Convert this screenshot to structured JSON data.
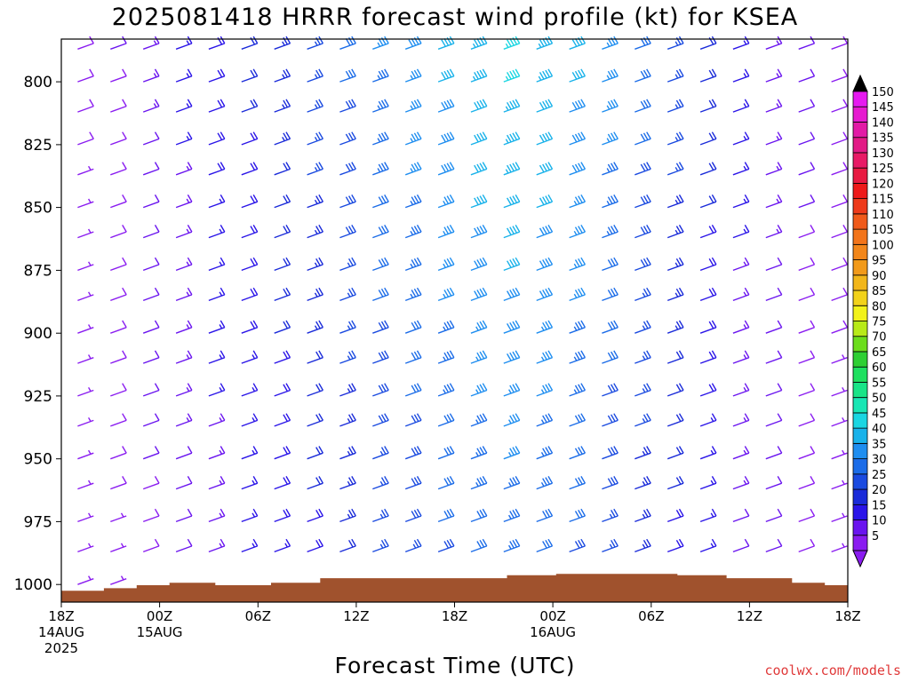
{
  "chart_data": {
    "type": "wind-barb-profile",
    "title": "2025081418 HRRR forecast wind profile (kt) for KSEA",
    "xlabel": "Forecast Time (UTC)",
    "ylabel": "",
    "units": "kt",
    "x_ticks": [
      {
        "hour": 0,
        "line1": "18Z",
        "line2": "14AUG",
        "line3": "2025"
      },
      {
        "hour": 6,
        "line1": "00Z",
        "line2": "15AUG",
        "line3": ""
      },
      {
        "hour": 12,
        "line1": "06Z",
        "line2": "",
        "line3": ""
      },
      {
        "hour": 18,
        "line1": "12Z",
        "line2": "",
        "line3": ""
      },
      {
        "hour": 24,
        "line1": "18Z",
        "line2": "",
        "line3": ""
      },
      {
        "hour": 30,
        "line1": "00Z",
        "line2": "16AUG",
        "line3": ""
      },
      {
        "hour": 36,
        "line1": "06Z",
        "line2": "",
        "line3": ""
      },
      {
        "hour": 42,
        "line1": "12Z",
        "line2": "",
        "line3": ""
      },
      {
        "hour": 48,
        "line1": "18Z",
        "line2": "",
        "line3": ""
      }
    ],
    "xlim": [
      0,
      48
    ],
    "y_ticks": [
      "800",
      "825",
      "850",
      "875",
      "900",
      "925",
      "950",
      "975",
      "1000"
    ],
    "ylim": [
      1007,
      783
    ],
    "y_scale": "linear-pressure-inverted",
    "barb_levels": [
      787,
      800,
      812,
      825,
      837,
      850,
      862,
      875,
      887,
      900,
      912,
      925,
      937,
      950,
      962,
      975,
      987,
      1000
    ],
    "barb_hours": [
      1,
      3,
      5,
      7,
      9,
      11,
      13,
      15,
      17,
      19,
      21,
      23,
      25,
      27,
      29,
      31,
      33,
      35,
      37,
      39,
      41,
      43,
      45,
      47
    ],
    "speed_profile_kt": {
      "hours": [
        1,
        3,
        5,
        7,
        9,
        11,
        13,
        15,
        17,
        19,
        21,
        23,
        25,
        27,
        29,
        31,
        33,
        35,
        37,
        39,
        41,
        43,
        45,
        47
      ],
      "values": [
        8,
        10,
        13,
        16,
        19,
        21,
        24,
        27,
        31,
        35,
        38,
        41,
        44,
        46,
        44,
        41,
        37,
        32,
        27,
        22,
        17,
        14,
        11,
        9
      ]
    },
    "surface_pressure_hpa": {
      "hours": [
        0,
        2.6,
        4.6,
        6.6,
        9.4,
        12.8,
        15.8,
        18.8,
        23.6,
        27.2,
        30.2,
        34.2,
        37.6,
        40.6,
        44.6,
        46.6,
        48
      ],
      "values": [
        1002.5,
        1001.5,
        1000.3,
        999.3,
        1000.3,
        999.3,
        997.5,
        997.5,
        997.5,
        996.3,
        995.8,
        995.8,
        996.3,
        997.5,
        999.3,
        1000.3,
        1001.8
      ]
    },
    "colorbar": {
      "levels": [
        5,
        10,
        15,
        20,
        25,
        30,
        35,
        40,
        45,
        50,
        55,
        60,
        65,
        70,
        75,
        80,
        85,
        90,
        95,
        100,
        105,
        110,
        115,
        120,
        125,
        130,
        135,
        140,
        145,
        150
      ],
      "colors": [
        "#8a1cf0",
        "#6a14ef",
        "#2a14e8",
        "#1a2bd9",
        "#1a4ae0",
        "#1b6ce8",
        "#1f8ef0",
        "#19b2ea",
        "#1ad6e2",
        "#19e6b4",
        "#19e487",
        "#1fe060",
        "#2ecf33",
        "#6cdd1c",
        "#b8ea18",
        "#f2f21a",
        "#f2d21a",
        "#f2b61a",
        "#f29a1a",
        "#f2861a",
        "#f2741a",
        "#f05a1a",
        "#ee3a1a",
        "#ee1a1a",
        "#e81a42",
        "#e81a66",
        "#e21a86",
        "#e21aa6",
        "#e61ad0",
        "#e61af0"
      ]
    }
  },
  "credit": "coolwx.com/models"
}
